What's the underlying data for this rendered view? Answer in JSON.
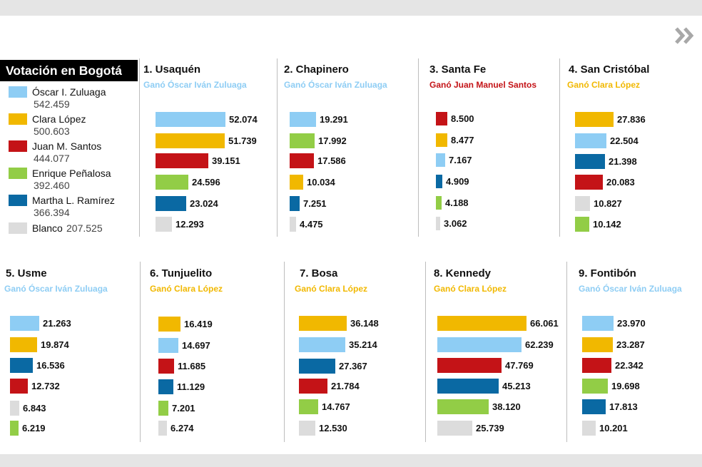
{
  "chart_data": {
    "type": "bar",
    "title": "Votación en Bogotá",
    "candidates": [
      {
        "key": "zuluaga",
        "name": "Óscar I. Zuluaga",
        "votes": "542.459",
        "color": "#8ecdf4"
      },
      {
        "key": "lopez",
        "name": "Clara López",
        "votes": "500.603",
        "color": "#f1b800"
      },
      {
        "key": "santos",
        "name": "Juan M. Santos",
        "votes": "444.077",
        "color": "#c41317"
      },
      {
        "key": "penalosa",
        "name": "Enrique Peñalosa",
        "votes": "392.460",
        "color": "#92cd46"
      },
      {
        "key": "ramirez",
        "name": "Martha L. Ramírez",
        "votes": "366.394",
        "color": "#0a69a3"
      },
      {
        "key": "blanco",
        "name": "Blanco",
        "votes": "207.525",
        "color": "#dcdcdc"
      }
    ],
    "localities": [
      {
        "title": "1. Usaquén",
        "winner": "Ganó Óscar Iván Zuluaga",
        "winner_color": "#8ecdf4",
        "bars": [
          {
            "c": "zuluaga",
            "value": 52074,
            "label": "52.074"
          },
          {
            "c": "lopez",
            "value": 51739,
            "label": "51.739"
          },
          {
            "c": "santos",
            "value": 39151,
            "label": "39.151"
          },
          {
            "c": "penalosa",
            "value": 24596,
            "label": "24.596"
          },
          {
            "c": "ramirez",
            "value": 23024,
            "label": "23.024"
          },
          {
            "c": "blanco",
            "value": 12293,
            "label": "12.293"
          }
        ]
      },
      {
        "title": "2. Chapinero",
        "winner": "Ganó Óscar Iván Zuluaga",
        "winner_color": "#8ecdf4",
        "bars": [
          {
            "c": "zuluaga",
            "value": 19291,
            "label": "19.291"
          },
          {
            "c": "penalosa",
            "value": 17992,
            "label": "17.992"
          },
          {
            "c": "santos",
            "value": 17586,
            "label": "17.586"
          },
          {
            "c": "lopez",
            "value": 10034,
            "label": "10.034"
          },
          {
            "c": "ramirez",
            "value": 7251,
            "label": "7.251"
          },
          {
            "c": "blanco",
            "value": 4475,
            "label": "4.475"
          }
        ]
      },
      {
        "title": "3. Santa Fe",
        "winner": "Ganó Juan Manuel Santos",
        "winner_color": "#c41317",
        "bars": [
          {
            "c": "santos",
            "value": 8500,
            "label": "8.500"
          },
          {
            "c": "lopez",
            "value": 8477,
            "label": "8.477"
          },
          {
            "c": "zuluaga",
            "value": 7167,
            "label": "7.167"
          },
          {
            "c": "ramirez",
            "value": 4909,
            "label": "4.909"
          },
          {
            "c": "penalosa",
            "value": 4188,
            "label": "4.188"
          },
          {
            "c": "blanco",
            "value": 3062,
            "label": "3.062"
          }
        ]
      },
      {
        "title": "4. San Cristóbal",
        "winner": "Ganó Clara López",
        "winner_color": "#f1b800",
        "bars": [
          {
            "c": "lopez",
            "value": 27836,
            "label": "27.836"
          },
          {
            "c": "zuluaga",
            "value": 22504,
            "label": "22.504"
          },
          {
            "c": "ramirez",
            "value": 21398,
            "label": "21.398"
          },
          {
            "c": "santos",
            "value": 20083,
            "label": "20.083"
          },
          {
            "c": "blanco",
            "value": 10827,
            "label": "10.827"
          },
          {
            "c": "penalosa",
            "value": 10142,
            "label": "10.142"
          }
        ]
      },
      {
        "title": "5. Usme",
        "winner": "Ganó Óscar Iván Zuluaga",
        "winner_color": "#8ecdf4",
        "bars": [
          {
            "c": "zuluaga",
            "value": 21263,
            "label": "21.263"
          },
          {
            "c": "lopez",
            "value": 19874,
            "label": "19.874"
          },
          {
            "c": "ramirez",
            "value": 16536,
            "label": "16.536"
          },
          {
            "c": "santos",
            "value": 12732,
            "label": "12.732"
          },
          {
            "c": "blanco",
            "value": 6843,
            "label": "6.843"
          },
          {
            "c": "penalosa",
            "value": 6219,
            "label": "6.219"
          }
        ]
      },
      {
        "title": "6. Tunjuelito",
        "winner": "Ganó Clara López",
        "winner_color": "#f1b800",
        "bars": [
          {
            "c": "lopez",
            "value": 16419,
            "label": "16.419"
          },
          {
            "c": "zuluaga",
            "value": 14697,
            "label": "14.697"
          },
          {
            "c": "santos",
            "value": 11685,
            "label": "11.685"
          },
          {
            "c": "ramirez",
            "value": 11129,
            "label": "11.129"
          },
          {
            "c": "penalosa",
            "value": 7201,
            "label": "7.201"
          },
          {
            "c": "blanco",
            "value": 6274,
            "label": "6.274"
          }
        ]
      },
      {
        "title": "7. Bosa",
        "winner": "Ganó Clara López",
        "winner_color": "#f1b800",
        "bars": [
          {
            "c": "lopez",
            "value": 36148,
            "label": "36.148"
          },
          {
            "c": "zuluaga",
            "value": 35214,
            "label": "35.214"
          },
          {
            "c": "ramirez",
            "value": 27367,
            "label": "27.367"
          },
          {
            "c": "santos",
            "value": 21784,
            "label": "21.784"
          },
          {
            "c": "penalosa",
            "value": 14767,
            "label": "14.767"
          },
          {
            "c": "blanco",
            "value": 12530,
            "label": "12.530"
          }
        ]
      },
      {
        "title": "8. Kennedy",
        "winner": "Ganó Clara López",
        "winner_color": "#f1b800",
        "bars": [
          {
            "c": "lopez",
            "value": 66061,
            "label": "66.061"
          },
          {
            "c": "zuluaga",
            "value": 62239,
            "label": "62.239"
          },
          {
            "c": "santos",
            "value": 47769,
            "label": "47.769"
          },
          {
            "c": "ramirez",
            "value": 45213,
            "label": "45.213"
          },
          {
            "c": "penalosa",
            "value": 38120,
            "label": "38.120"
          },
          {
            "c": "blanco",
            "value": 25739,
            "label": "25.739"
          }
        ]
      },
      {
        "title": "9. Fontibón",
        "winner": "Ganó Óscar Iván Zuluaga",
        "winner_color": "#8ecdf4",
        "bars": [
          {
            "c": "zuluaga",
            "value": 23970,
            "label": "23.970"
          },
          {
            "c": "lopez",
            "value": 23287,
            "label": "23.287"
          },
          {
            "c": "santos",
            "value": 22342,
            "label": "22.342"
          },
          {
            "c": "penalosa",
            "value": 19698,
            "label": "19.698"
          },
          {
            "c": "ramirez",
            "value": 17813,
            "label": "17.813"
          },
          {
            "c": "blanco",
            "value": 10201,
            "label": "10.201"
          }
        ]
      }
    ]
  },
  "nav": {
    "next_icon": "double-chevron-right-icon",
    "icon_color": "#a8a8a8"
  }
}
